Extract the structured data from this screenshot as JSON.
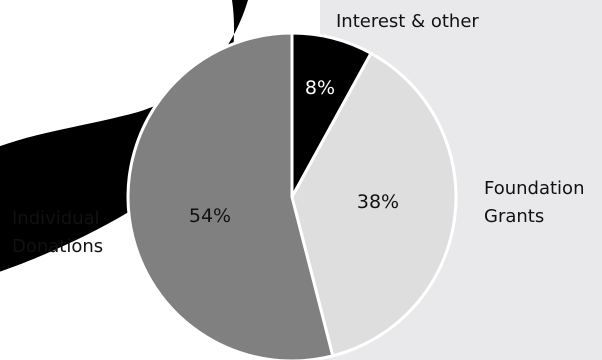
{
  "chart_data": {
    "type": "pie",
    "slices": [
      {
        "label": "Interest & other",
        "value": 8,
        "value_text": "8%",
        "color": "#000000",
        "text_color": "#ffffff"
      },
      {
        "label": "Foundation Grants",
        "value": 38,
        "value_text": "38%",
        "color": "#dedede",
        "text_color": "#111111"
      },
      {
        "label": "Individual Donations",
        "value": 54,
        "value_text": "54%",
        "color": "#808080",
        "text_color": "#111111"
      }
    ],
    "start": "top",
    "direction": "clockwise",
    "background_panel_color": "#e9e9ec",
    "slice_border_color": "#ffffff"
  }
}
